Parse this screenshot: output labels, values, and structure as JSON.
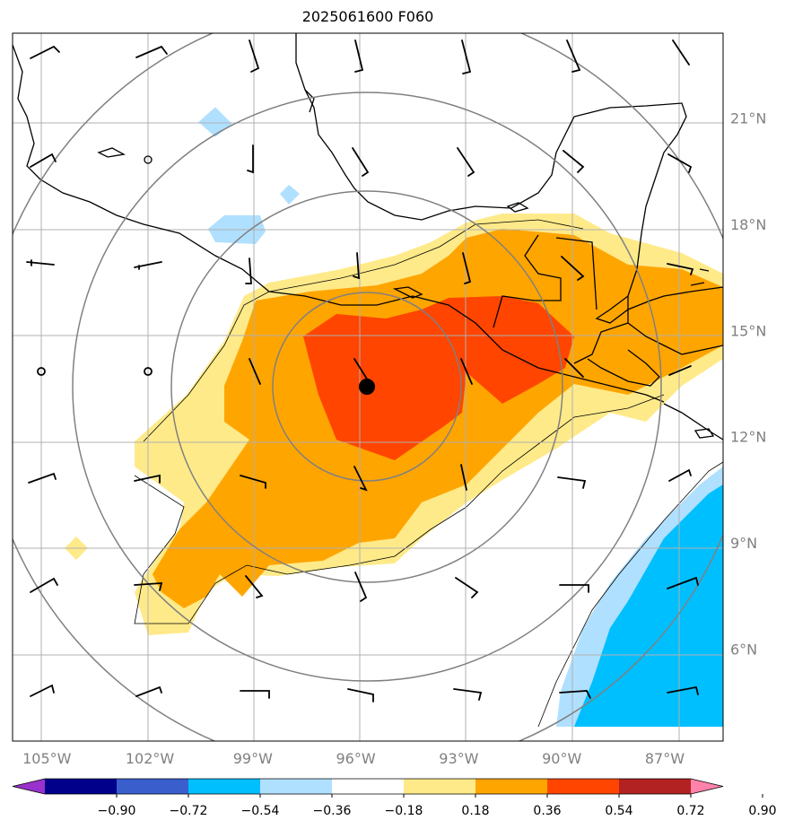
{
  "title": "2025061600 F060",
  "map": {
    "lon_range": [
      -106,
      -85.3
    ],
    "lat_range": [
      3.4,
      23.4
    ],
    "lon_ticks": [
      "105°W",
      "102°W",
      "99°W",
      "96°W",
      "93°W",
      "90°W",
      "87°W"
    ],
    "lon_values": [
      -105,
      -102,
      -99,
      -96,
      -93,
      -90,
      -87
    ],
    "lat_ticks": [
      "21°N",
      "18°N",
      "15°N",
      "12°N",
      "9°N",
      "6°N"
    ],
    "lat_values": [
      21,
      18,
      15,
      12,
      9,
      6
    ],
    "grid": true,
    "storm_center": {
      "lon": -95.8,
      "lat": 13.6
    },
    "range_rings_deg": [
      2.5,
      5,
      7.5,
      10
    ]
  },
  "colorbar": {
    "labels": [
      "−0.90",
      "−0.72",
      "−0.54",
      "−0.36",
      "−0.18",
      "0.18",
      "0.36",
      "0.54",
      "0.72",
      "0.90"
    ],
    "colors": [
      "#9932cc",
      "#00008b",
      "#3a5fcd",
      "#00bfff",
      "#b0e0ff",
      "#ffffff",
      "#ffea8a",
      "#ffa500",
      "#ff4500",
      "#b22222",
      "#ff82ab"
    ]
  },
  "colors": {
    "coast": "#000000",
    "grid": "#b0b0b0",
    "rings": "#808080",
    "pos1": "#ffea8a",
    "pos2": "#ffa500",
    "pos3": "#ff4500",
    "neg1": "#b0e0ff",
    "neg2": "#00bfff"
  }
}
